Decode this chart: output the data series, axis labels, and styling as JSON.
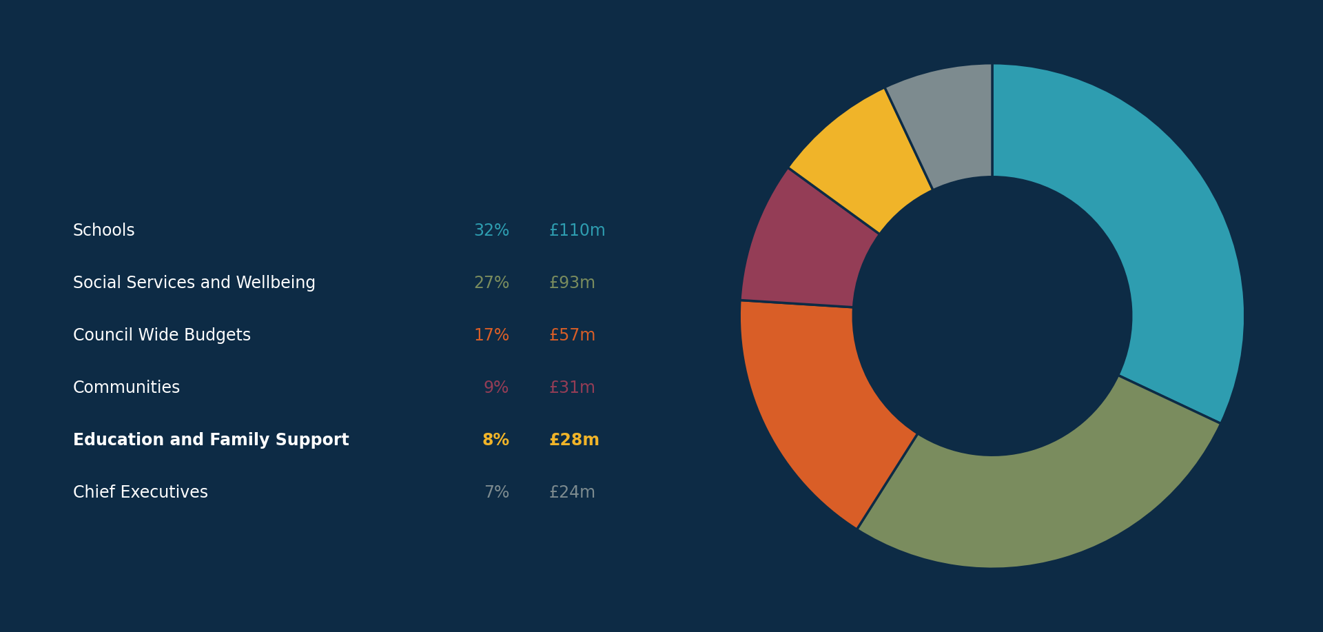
{
  "background_color": "#0d2b45",
  "categories": [
    "Schools",
    "Social Services and Wellbeing",
    "Council Wide Budgets",
    "Communities",
    "Education and Family Support",
    "Chief Executives"
  ],
  "values": [
    32,
    27,
    17,
    9,
    8,
    7
  ],
  "amounts": [
    "£110m",
    "£93m",
    "£57m",
    "£31m",
    "£28m",
    "£24m"
  ],
  "percentages": [
    "32%",
    "27%",
    "17%",
    "9%",
    "8%",
    "7%"
  ],
  "slice_colors": [
    "#2e9db0",
    "#7a8c5e",
    "#d95e27",
    "#943d56",
    "#f0b429",
    "#7d8b8f"
  ],
  "pct_colors": [
    "#2e9db0",
    "#7a8c5e",
    "#d95e27",
    "#943d56",
    "#f0b429",
    "#7d8b8f"
  ],
  "amt_colors": [
    "#2e9db0",
    "#7a8c5e",
    "#d95e27",
    "#943d56",
    "#f0b429",
    "#7d8b8f"
  ],
  "label_color": "#ffffff",
  "wedge_edge_color": "#0d2b45",
  "wedge_edge_width": 2.5,
  "donut_hole_ratio": 0.55,
  "name_fontsize": 17,
  "pct_fontsize": 17,
  "amt_fontsize": 17,
  "bold_rows": [
    4
  ],
  "start_angle": 90
}
